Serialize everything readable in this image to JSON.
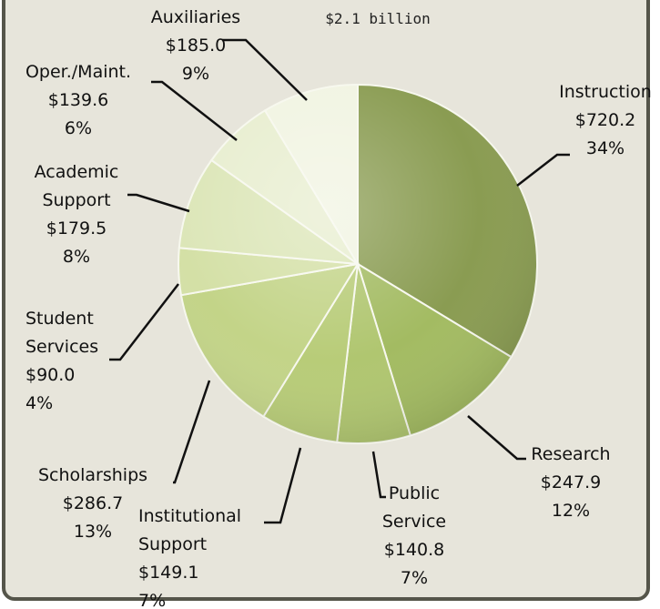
{
  "subtitle": "$2.1 billion",
  "chart_data": {
    "type": "pie",
    "title": "",
    "subtitle": "$2.1 billion",
    "unit": "$ millions",
    "slices": [
      {
        "name": "Instruction",
        "value": 720.2,
        "percent": "34%",
        "color": "#8a9c52",
        "value_label": "$720.2"
      },
      {
        "name": "Research",
        "value": 247.9,
        "percent": "12%",
        "color": "#a3bb62",
        "value_label": "$247.9"
      },
      {
        "name": "Public Service",
        "value": 140.8,
        "percent": "7%",
        "color": "#b0c670",
        "value_label": "$140.8"
      },
      {
        "name": "Institutional Support",
        "value": 149.1,
        "percent": "7%",
        "color": "#b8cc78",
        "value_label": "$149.1"
      },
      {
        "name": "Scholarships",
        "value": 286.7,
        "percent": "13%",
        "color": "#c3d488",
        "value_label": "$286.7"
      },
      {
        "name": "Student Services",
        "value": 90.0,
        "percent": "4%",
        "color": "#d4e0a6",
        "value_label": "$90.0"
      },
      {
        "name": "Academic Support",
        "value": 179.5,
        "percent": "8%",
        "color": "#dce6b8",
        "value_label": "$179.5"
      },
      {
        "name": "Oper./Maint.",
        "value": 139.6,
        "percent": "6%",
        "color": "#e8eed0",
        "value_label": "$139.6"
      },
      {
        "name": "Auxiliaries",
        "value": 185.0,
        "percent": "9%",
        "color": "#f1f4e2",
        "value_label": "$185.0"
      }
    ]
  }
}
